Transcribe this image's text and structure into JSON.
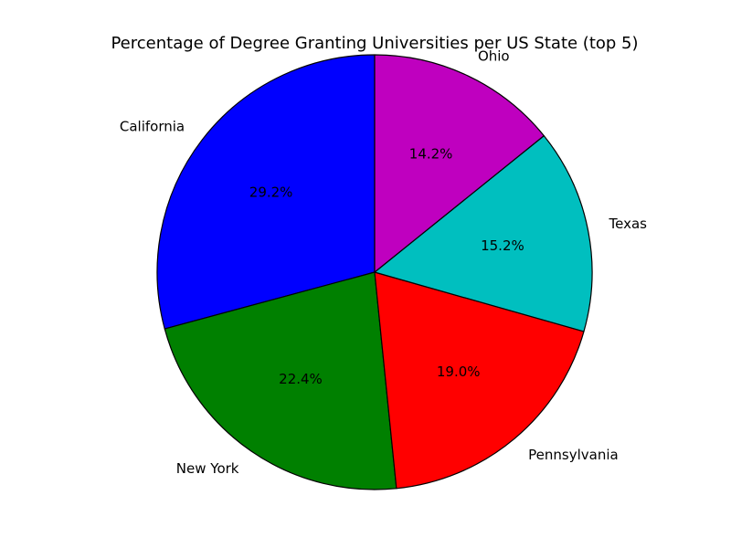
{
  "chart_data": {
    "type": "pie",
    "title": "Percentage of Degree Granting Universities per US State (top 5)",
    "categories": [
      "California",
      "New York",
      "Pennsylvania",
      "Texas",
      "Ohio"
    ],
    "values": [
      29.2,
      22.4,
      19.0,
      15.2,
      14.2
    ],
    "value_labels": [
      "29.2%",
      "22.4%",
      "19.0%",
      "15.2%",
      "14.2%"
    ],
    "colors": [
      "#0000ff",
      "#008000",
      "#ff0000",
      "#00bfbf",
      "#bf00bf"
    ],
    "start_angle_deg": 90,
    "direction": "counterclockwise",
    "edge_color": "#000000"
  }
}
